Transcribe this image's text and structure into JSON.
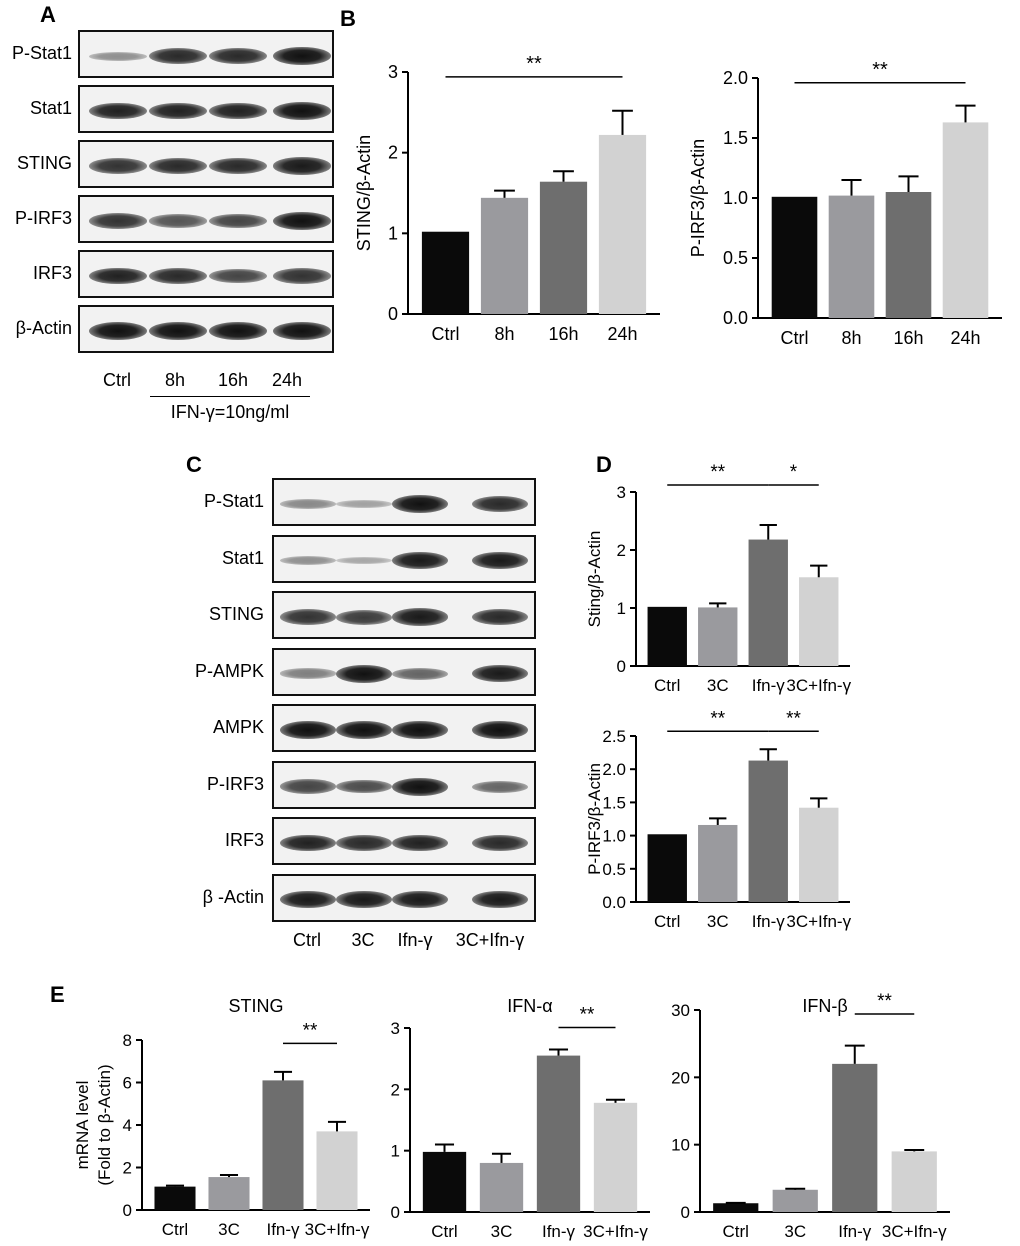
{
  "panels": {
    "A": "A",
    "B": "B",
    "C": "C",
    "D": "D",
    "E": "E"
  },
  "blotA": {
    "rows": [
      {
        "label": "P-Stat1",
        "bands": [
          0.25,
          0.85,
          0.85,
          1.0
        ]
      },
      {
        "label": "Stat1",
        "bands": [
          0.9,
          0.9,
          0.9,
          1.0
        ]
      },
      {
        "label": "STING",
        "bands": [
          0.8,
          0.85,
          0.85,
          0.95
        ]
      },
      {
        "label": "P-IRF3",
        "bands": [
          0.8,
          0.6,
          0.7,
          1.0
        ]
      },
      {
        "label": "IRF3",
        "bands": [
          0.9,
          0.85,
          0.7,
          0.8
        ]
      },
      {
        "label": "β-Actin",
        "bands": [
          1.0,
          1.0,
          1.0,
          1.0
        ]
      }
    ],
    "lanes": [
      "Ctrl",
      "8h",
      "16h",
      "24h"
    ],
    "treatment": "IFN-γ=10ng/ml"
  },
  "blotC": {
    "rows": [
      {
        "label": "P-Stat1",
        "bands": [
          0.3,
          0.15,
          1.0,
          0.85
        ]
      },
      {
        "label": "Stat1",
        "bands": [
          0.25,
          0.1,
          0.95,
          0.95
        ]
      },
      {
        "label": "STING",
        "bands": [
          0.8,
          0.75,
          0.95,
          0.85
        ]
      },
      {
        "label": "P-AMPK",
        "bands": [
          0.35,
          1.0,
          0.5,
          0.95
        ]
      },
      {
        "label": "AMPK",
        "bands": [
          1.0,
          1.0,
          1.0,
          1.0
        ]
      },
      {
        "label": "P-IRF3",
        "bands": [
          0.7,
          0.65,
          1.0,
          0.5
        ]
      },
      {
        "label": "IRF3",
        "bands": [
          0.9,
          0.85,
          0.9,
          0.85
        ]
      },
      {
        "label": "β -Actin",
        "bands": [
          0.95,
          0.95,
          0.95,
          0.95
        ]
      }
    ],
    "lanes": [
      "Ctrl",
      "3C",
      "Ifn-γ",
      "3C+Ifn-γ"
    ]
  },
  "chart_data": [
    {
      "id": "B1",
      "type": "bar",
      "categories": [
        "Ctrl",
        "8h",
        "16h",
        "24h"
      ],
      "values": [
        1.02,
        1.44,
        1.64,
        2.22
      ],
      "errors": [
        0,
        0.09,
        0.13,
        0.3
      ],
      "ylabel": "STING/β-Actin",
      "ylim": [
        0,
        3
      ],
      "yticks": [
        "0",
        "1",
        "2",
        "3"
      ],
      "colors": [
        "#0a0a0a",
        "#9a9a9e",
        "#6e6e6e",
        "#d2d2d2"
      ],
      "sig": [
        {
          "from": 0,
          "to": 3,
          "text": "**"
        }
      ]
    },
    {
      "id": "B2",
      "type": "bar",
      "categories": [
        "Ctrl",
        "8h",
        "16h",
        "24h"
      ],
      "values": [
        1.01,
        1.02,
        1.05,
        1.63
      ],
      "errors": [
        0,
        0.13,
        0.13,
        0.14
      ],
      "ylabel": "P-IRF3/β-Actin",
      "ylim": [
        0,
        2
      ],
      "yticks": [
        "0.0",
        "0.5",
        "1.0",
        "1.5",
        "2.0"
      ],
      "colors": [
        "#0a0a0a",
        "#9a9a9e",
        "#6e6e6e",
        "#d2d2d2"
      ],
      "sig": [
        {
          "from": 0,
          "to": 3,
          "text": "**"
        }
      ]
    },
    {
      "id": "D1",
      "type": "bar",
      "categories": [
        "Ctrl",
        "3C",
        "Ifn-γ",
        "3C+Ifn-γ"
      ],
      "values": [
        1.02,
        1.01,
        2.18,
        1.53
      ],
      "errors": [
        0,
        0.07,
        0.25,
        0.2
      ],
      "ylabel": "Sting/β-Actin",
      "ylim": [
        0,
        3
      ],
      "yticks": [
        "0",
        "1",
        "2",
        "3"
      ],
      "colors": [
        "#0a0a0a",
        "#9a9a9e",
        "#6e6e6e",
        "#d2d2d2"
      ],
      "sig": [
        {
          "from": 0,
          "to": 2,
          "text": "**"
        },
        {
          "from": 2,
          "to": 3,
          "text": "*"
        }
      ]
    },
    {
      "id": "D2",
      "type": "bar",
      "categories": [
        "Ctrl",
        "3C",
        "Ifn-γ",
        "3C+Ifn-γ"
      ],
      "values": [
        1.02,
        1.16,
        2.13,
        1.42
      ],
      "errors": [
        0,
        0.1,
        0.17,
        0.14
      ],
      "ylabel": "P-IRF3/β-Actin",
      "ylim": [
        0,
        2.5
      ],
      "yticks": [
        "0.0",
        "0.5",
        "1.0",
        "1.5",
        "2.0",
        "2.5"
      ],
      "colors": [
        "#0a0a0a",
        "#9a9a9e",
        "#6e6e6e",
        "#d2d2d2"
      ],
      "sig": [
        {
          "from": 0,
          "to": 2,
          "text": "**"
        },
        {
          "from": 2,
          "to": 3,
          "text": "**"
        }
      ]
    },
    {
      "id": "E1",
      "type": "bar",
      "title": "STING",
      "categories": [
        "Ctrl",
        "3C",
        "Ifn-γ",
        "3C+Ifn-γ"
      ],
      "values": [
        1.1,
        1.55,
        6.1,
        3.7
      ],
      "errors": [
        0.05,
        0.1,
        0.4,
        0.45
      ],
      "ylabel": "mRNA level",
      "ylabel2": "(Fold to β-Actin)",
      "ylim": [
        0,
        8
      ],
      "yticks": [
        "0",
        "2",
        "4",
        "6",
        "8"
      ],
      "colors": [
        "#0a0a0a",
        "#9a9a9e",
        "#6e6e6e",
        "#d2d2d2"
      ],
      "sig": [
        {
          "from": 2,
          "to": 3,
          "text": "**"
        }
      ]
    },
    {
      "id": "E2",
      "type": "bar",
      "title": "IFN-α",
      "categories": [
        "Ctrl",
        "3C",
        "Ifn-γ",
        "3C+Ifn-γ"
      ],
      "values": [
        0.98,
        0.8,
        2.55,
        1.78
      ],
      "errors": [
        0.12,
        0.15,
        0.1,
        0.05
      ],
      "ylabel": "",
      "ylim": [
        0,
        3
      ],
      "yticks": [
        "0",
        "1",
        "2",
        "3"
      ],
      "colors": [
        "#0a0a0a",
        "#9a9a9e",
        "#6e6e6e",
        "#d2d2d2"
      ],
      "sig": [
        {
          "from": 2,
          "to": 3,
          "text": "**"
        }
      ]
    },
    {
      "id": "E3",
      "type": "bar",
      "title": "IFN-β",
      "categories": [
        "Ctrl",
        "3C",
        "Ifn-γ",
        "3C+Ifn-γ"
      ],
      "values": [
        1.3,
        3.3,
        22,
        9
      ],
      "errors": [
        0.05,
        0.15,
        2.7,
        0.2
      ],
      "ylabel": "",
      "ylim": [
        0,
        30
      ],
      "yticks": [
        "0",
        "10",
        "20",
        "30"
      ],
      "colors": [
        "#0a0a0a",
        "#9a9a9e",
        "#6e6e6e",
        "#d2d2d2"
      ],
      "sig": [
        {
          "from": 2,
          "to": 3,
          "text": "**"
        }
      ]
    }
  ]
}
